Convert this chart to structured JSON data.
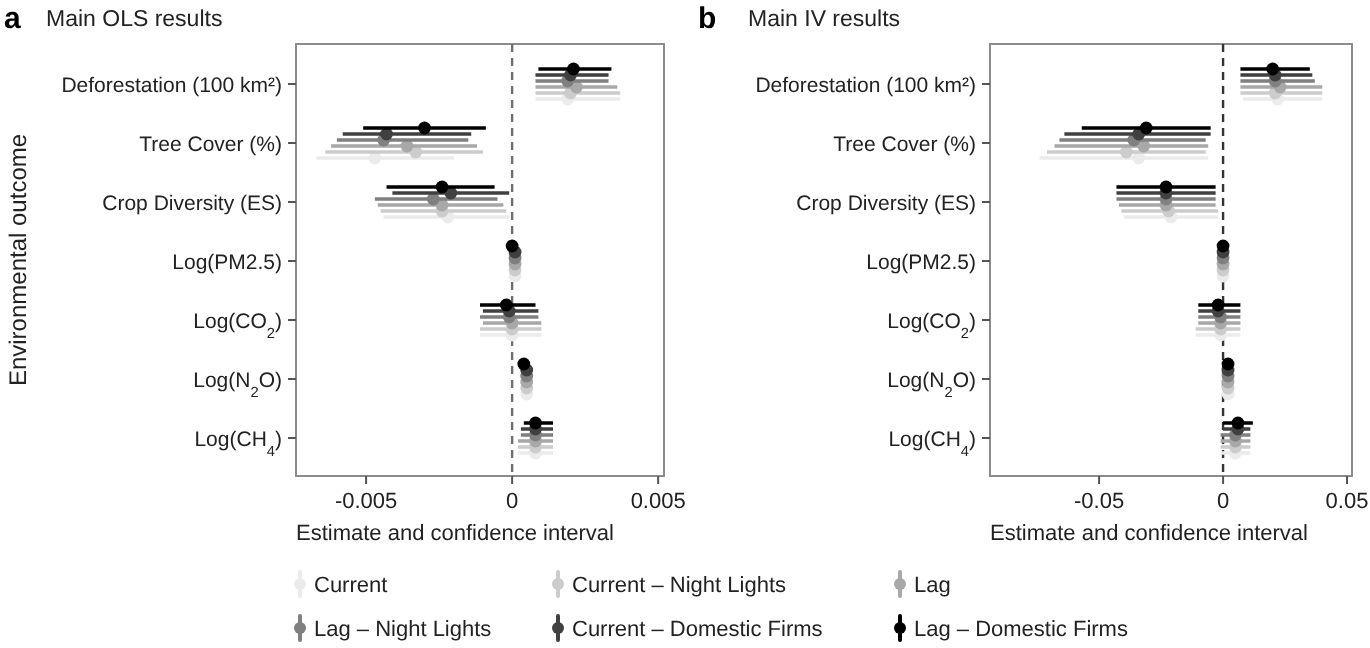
{
  "chart_data": [
    {
      "type": "scatter",
      "orientation": "horizontal",
      "title": "Main OLS results",
      "annotations": [
        "a"
      ],
      "xlabel": "Estimate and confidence interval",
      "ylabel": "Environmental outcome",
      "categories": [
        "Deforestation (100 km²)",
        "Tree Cover (%)",
        "Crop Diversity (ES)",
        "Log(PM2.5)",
        "Log(CO$_{2}$)",
        "Log(N$_{2}$O)",
        "Log(CH$_{4}$)"
      ],
      "xlim": [
        -0.0074,
        0.0052
      ],
      "xticks": [
        -0.005,
        0,
        0.005
      ],
      "marker": "circle",
      "legend": "bottom",
      "ref_lines": [
        {
          "axis": "x",
          "value": 0,
          "color": "#6e6e6e",
          "line_style": "dashed"
        }
      ],
      "series": [
        {
          "name": "Current",
          "color": "#ebebeb",
          "values": [
            0.0019,
            -0.0047,
            -0.0022,
            0.0001,
            0.0,
            0.0005,
            0.0008
          ],
          "errors": [
            [
              0.0008,
              0.0037
            ],
            [
              -0.0067,
              -0.002
            ],
            [
              -0.0044,
              -0.0001
            ],
            [
              -0.0001,
              0.0003
            ],
            [
              -0.0011,
              0.001
            ],
            [
              0.0003,
              0.0007
            ],
            [
              0.0002,
              0.0014
            ]
          ]
        },
        {
          "name": "Current – Night Lights",
          "color": "#cccccc",
          "values": [
            0.002,
            -0.0033,
            -0.0024,
            0.0001,
            0.0,
            0.0005,
            0.0008
          ],
          "errors": [
            [
              0.0008,
              0.0037
            ],
            [
              -0.0064,
              -0.001
            ],
            [
              -0.0045,
              -0.0002
            ],
            [
              -0.0001,
              0.0003
            ],
            [
              -0.0011,
              0.001
            ],
            [
              0.0003,
              0.0007
            ],
            [
              0.0002,
              0.0014
            ]
          ]
        },
        {
          "name": "Lag",
          "color": "#a8a8a8",
          "values": [
            0.0022,
            -0.0036,
            -0.0024,
            0.0001,
            0.0,
            0.0005,
            0.0008
          ],
          "errors": [
            [
              0.0008,
              0.0036
            ],
            [
              -0.0062,
              -0.0012
            ],
            [
              -0.0046,
              -0.0003
            ],
            [
              -0.0001,
              0.0003
            ],
            [
              -0.001,
              0.001
            ],
            [
              0.0003,
              0.0007
            ],
            [
              0.0002,
              0.0014
            ]
          ]
        },
        {
          "name": "Lag – Night Lights",
          "color": "#808080",
          "values": [
            0.0019,
            -0.0044,
            -0.0027,
            0.0001,
            -0.0001,
            0.0005,
            0.0008
          ],
          "errors": [
            [
              0.0008,
              0.0033
            ],
            [
              -0.006,
              -0.0015
            ],
            [
              -0.0047,
              -0.0005
            ],
            [
              -0.0001,
              0.0003
            ],
            [
              -0.0011,
              0.0009
            ],
            [
              0.0003,
              0.0007
            ],
            [
              0.0003,
              0.0014
            ]
          ]
        },
        {
          "name": "Current – Domestic Firms",
          "color": "#404040",
          "values": [
            0.002,
            -0.0043,
            -0.0021,
            0.0001,
            -0.0001,
            0.0005,
            0.0008
          ],
          "errors": [
            [
              0.0008,
              0.0033
            ],
            [
              -0.0058,
              -0.0014
            ],
            [
              -0.0041,
              -0.0001
            ],
            [
              -0.0001,
              0.0003
            ],
            [
              -0.001,
              0.0009
            ],
            [
              0.0003,
              0.0007
            ],
            [
              0.0003,
              0.0014
            ]
          ]
        },
        {
          "name": "Lag – Domestic Firms",
          "color": "#000000",
          "values": [
            0.0021,
            -0.003,
            -0.0024,
            0.0,
            -0.0002,
            0.0004,
            0.0008
          ],
          "errors": [
            [
              0.0009,
              0.0034
            ],
            [
              -0.0051,
              -0.0009
            ],
            [
              -0.0043,
              -0.0006
            ],
            [
              -0.0002,
              0.0002
            ],
            [
              -0.0011,
              0.0008
            ],
            [
              0.0002,
              0.0006
            ],
            [
              0.0004,
              0.0014
            ]
          ]
        }
      ]
    },
    {
      "type": "scatter",
      "orientation": "horizontal",
      "title": "Main IV results",
      "annotations": [
        "b"
      ],
      "xlabel": "Estimate and confidence interval",
      "categories": [
        "Deforestation (100 km²)",
        "Tree Cover (%)",
        "Crop Diversity (ES)",
        "Log(PM2.5)",
        "Log(CO$_{2}$)",
        "Log(N$_{2}$O)",
        "Log(CH$_{4}$)"
      ],
      "xlim": [
        -0.094,
        0.052
      ],
      "xticks": [
        -0.05,
        0,
        0.05
      ],
      "marker": "circle",
      "ref_lines": [
        {
          "axis": "x",
          "value": 0,
          "color": "#333333",
          "line_style": "dashed"
        }
      ],
      "series": [
        {
          "color": "#ebebeb",
          "values": [
            0.022,
            -0.034,
            -0.021,
            0.0,
            -0.001,
            0.002,
            0.005
          ],
          "errors": [
            [
              0.008,
              0.04
            ],
            [
              -0.074,
              -0.006
            ],
            [
              -0.04,
              -0.002
            ],
            [
              -0.001,
              0.001
            ],
            [
              -0.011,
              0.007
            ],
            [
              0.001,
              0.003
            ],
            [
              -0.001,
              0.011
            ]
          ]
        },
        {
          "color": "#cccccc",
          "values": [
            0.021,
            -0.039,
            -0.022,
            0.0,
            -0.001,
            0.002,
            0.005
          ],
          "errors": [
            [
              0.007,
              0.04
            ],
            [
              -0.071,
              -0.007
            ],
            [
              -0.041,
              -0.002
            ],
            [
              -0.001,
              0.001
            ],
            [
              -0.011,
              0.007
            ],
            [
              0.001,
              0.003
            ],
            [
              -0.001,
              0.011
            ]
          ]
        },
        {
          "color": "#a8a8a8",
          "values": [
            0.023,
            -0.032,
            -0.023,
            0.0,
            -0.001,
            0.002,
            0.005
          ],
          "errors": [
            [
              0.007,
              0.04
            ],
            [
              -0.068,
              -0.006
            ],
            [
              -0.042,
              -0.003
            ],
            [
              -0.001,
              0.001
            ],
            [
              -0.01,
              0.007
            ],
            [
              0.001,
              0.003
            ],
            [
              -0.001,
              0.011
            ]
          ]
        },
        {
          "color": "#808080",
          "values": [
            0.021,
            -0.036,
            -0.023,
            0.0,
            -0.001,
            0.002,
            0.005
          ],
          "errors": [
            [
              0.007,
              0.037
            ],
            [
              -0.066,
              -0.007
            ],
            [
              -0.043,
              -0.003
            ],
            [
              -0.001,
              0.001
            ],
            [
              -0.01,
              0.007
            ],
            [
              0.001,
              0.003
            ],
            [
              -0.001,
              0.011
            ]
          ]
        },
        {
          "color": "#404040",
          "values": [
            0.021,
            -0.034,
            -0.023,
            0.0,
            -0.002,
            0.002,
            0.006
          ],
          "errors": [
            [
              0.007,
              0.036
            ],
            [
              -0.064,
              -0.005
            ],
            [
              -0.043,
              -0.003
            ],
            [
              -0.001,
              0.001
            ],
            [
              -0.01,
              0.007
            ],
            [
              0.001,
              0.003
            ],
            [
              0.0,
              0.011
            ]
          ]
        },
        {
          "color": "#000000",
          "values": [
            0.02,
            -0.031,
            -0.023,
            0.0,
            -0.002,
            0.002,
            0.006
          ],
          "errors": [
            [
              0.007,
              0.035
            ],
            [
              -0.057,
              -0.005
            ],
            [
              -0.043,
              -0.003
            ],
            [
              -0.001,
              0.001
            ],
            [
              -0.01,
              0.007
            ],
            [
              0.001,
              0.003
            ],
            [
              0.0,
              0.012
            ]
          ]
        }
      ]
    }
  ]
}
